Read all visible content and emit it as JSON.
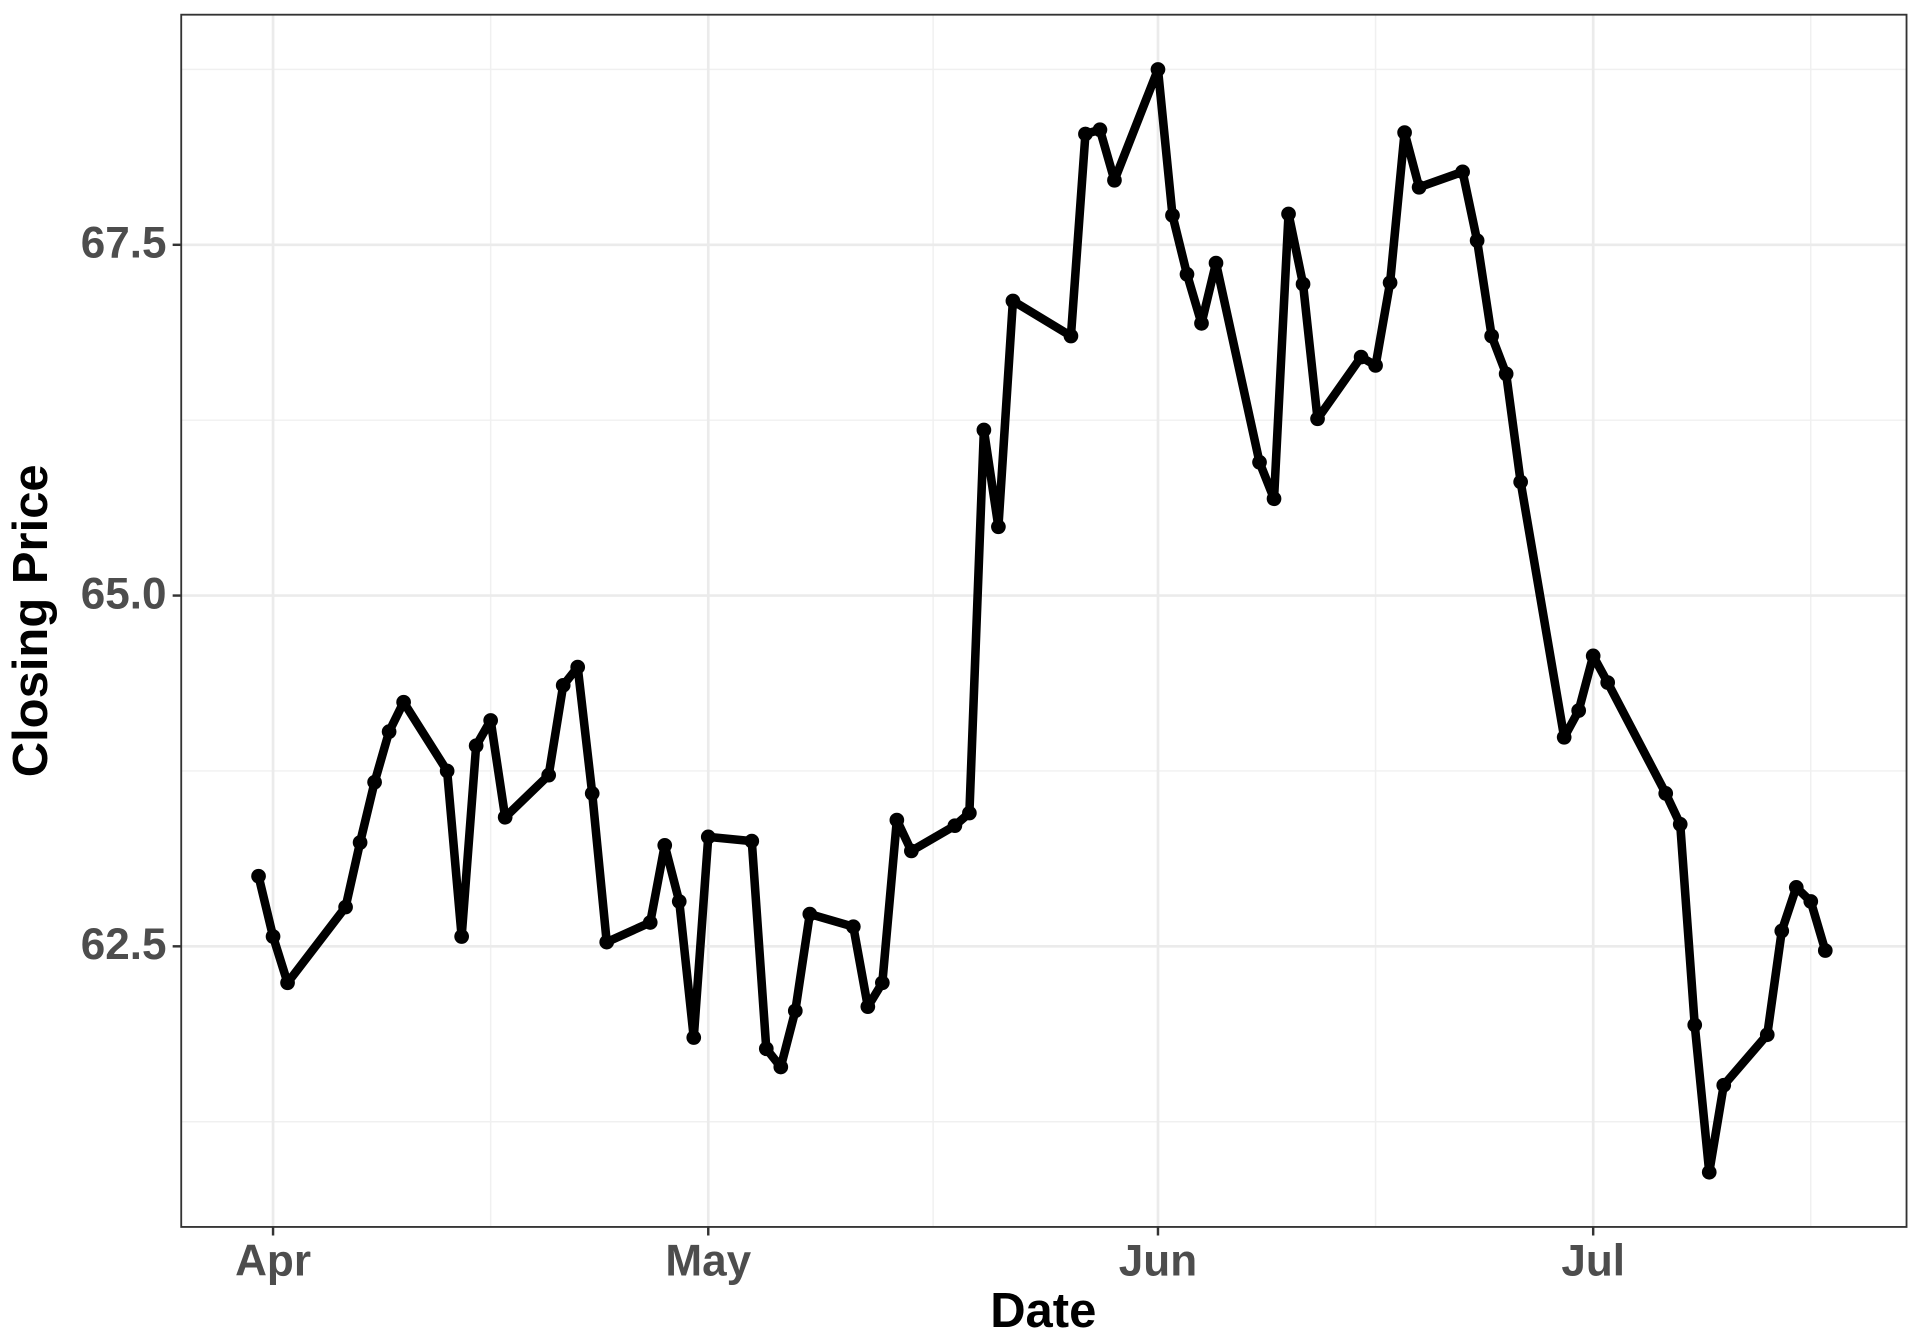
{
  "chart_data": {
    "type": "line",
    "x_label": "Date",
    "y_label": "Closing Price",
    "x": [
      -1,
      0,
      1,
      5,
      6,
      7,
      8,
      9,
      12,
      13,
      14,
      15,
      16,
      19,
      20,
      21,
      22,
      23,
      26,
      27,
      28,
      29,
      30,
      33,
      34,
      35,
      36,
      37,
      40,
      41,
      42,
      43,
      44,
      47,
      48,
      49,
      50,
      51,
      55,
      56,
      57,
      58,
      61,
      62,
      63,
      64,
      65,
      68,
      69,
      70,
      71,
      72,
      75,
      76,
      77,
      78,
      79,
      82,
      83,
      84,
      85,
      86,
      89,
      90,
      91,
      92,
      96,
      97,
      98,
      99,
      100,
      103,
      104,
      105,
      106,
      107
    ],
    "series": [
      {
        "color": "#000000",
        "values": [
          63.0,
          62.57,
          62.24,
          62.78,
          63.24,
          63.67,
          64.03,
          64.24,
          63.75,
          62.57,
          63.93,
          64.11,
          63.42,
          63.72,
          64.36,
          64.49,
          63.59,
          62.53,
          62.67,
          63.22,
          62.82,
          61.85,
          63.28,
          63.25,
          61.77,
          61.64,
          62.04,
          62.73,
          62.64,
          62.07,
          62.24,
          63.4,
          63.18,
          63.36,
          63.45,
          66.18,
          65.49,
          67.1,
          66.85,
          68.29,
          68.32,
          67.96,
          68.75,
          67.71,
          67.29,
          66.94,
          67.37,
          65.95,
          65.69,
          67.72,
          67.22,
          66.26,
          66.7,
          66.64,
          67.23,
          68.3,
          67.91,
          68.02,
          67.53,
          66.85,
          66.58,
          65.81,
          63.99,
          64.18,
          64.57,
          64.38,
          63.59,
          63.37,
          61.94,
          60.89,
          61.51,
          61.87,
          62.61,
          62.92,
          62.82,
          62.47
        ]
      }
    ],
    "xlim": [
      -6.33,
      112.6
    ],
    "ylim": [
      60.5,
      69.14
    ],
    "xticks": [
      {
        "value": 0,
        "label": "Apr"
      },
      {
        "value": 30,
        "label": "May"
      },
      {
        "value": 61,
        "label": "Jun"
      },
      {
        "value": 91,
        "label": "Jul"
      }
    ],
    "yticks": [
      62.5,
      {
        "value": 65,
        "label": "65.0"
      },
      67.5
    ],
    "grid": true
  }
}
